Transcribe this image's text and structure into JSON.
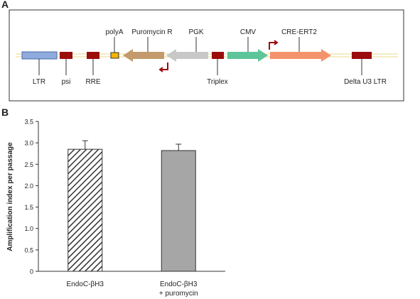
{
  "panel_labels": [
    "A",
    "B"
  ],
  "diagram": {
    "elements": [
      "LTR",
      "psi",
      "RRE",
      "polyA",
      "Puromycin R",
      "PGK",
      "Triplex",
      "CMV",
      "CRE-ERT2",
      "Delta U3 LTR"
    ]
  },
  "chart_data": {
    "type": "bar",
    "ylabel": "Amplification index per passage",
    "categories": [
      "EndoC-βH3",
      "EndoC-βH3\n+ puromycin"
    ],
    "values": [
      2.85,
      2.82
    ],
    "errors": [
      0.2,
      0.15
    ],
    "bar_styles": [
      "hatched",
      "solid"
    ],
    "color": "#a6a6a6",
    "ylim": [
      0,
      3.5
    ],
    "yticks": [
      0,
      0.5,
      {
        "value": 1,
        "label": "1.0"
      },
      1.5,
      {
        "value": 2,
        "label": "2.0"
      },
      2.5,
      {
        "value": 3,
        "label": "3.0"
      },
      3.5
    ]
  }
}
